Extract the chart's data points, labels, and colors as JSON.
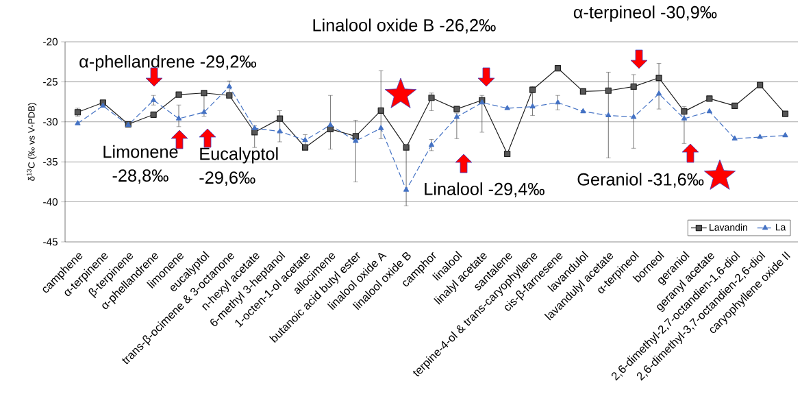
{
  "chart_data": {
    "type": "line",
    "ylabel": "δ$^{13}$C (‰ vs V-PDB)",
    "categories": [
      "camphene",
      "α-terpinene",
      "β-terpinene",
      "α-phellandrene",
      "limonene",
      "eucalyptol",
      "trans-β-ocimene & 3-octanone",
      "n-hexyl acetate",
      "6-methyl 3-heptanol",
      "1-octen-1-ol acetate",
      "allocimene",
      "butanoic acid butyl ester",
      "linalool oxide A",
      "linalool oxide B",
      "camphor",
      "linalool",
      "linalyl acetate",
      "santalene",
      "terpine-4-ol & trans-caryophyllene",
      "cis-β-farnesene",
      "lavandulol",
      "lavandulyl acetate",
      "α-terpineol",
      "borneol",
      "geraniol",
      "geranyl acetate",
      "2,6-dimethyl-2,7-octandien-1,6-diol",
      "2,6-dimethyl-3,7-octandien-2,6-diol",
      "caryophyllene oxide II"
    ],
    "series": [
      {
        "name": "Lavandin",
        "color": "#1f1f1f",
        "marker": "square",
        "line_style": "solid",
        "values": [
          -28.8,
          -27.6,
          -30.3,
          -29.1,
          -26.6,
          -26.4,
          -26.7,
          -31.3,
          -29.6,
          -33.2,
          -30.9,
          -31.8,
          -28.6,
          -33.2,
          -27.0,
          -28.4,
          -27.3,
          -34.0,
          -26.0,
          -23.3,
          -26.2,
          -26.1,
          -25.6,
          -24.5,
          -28.7,
          -27.1,
          -28.0,
          -25.4,
          -29.0
        ],
        "errors": [
          0.5,
          null,
          null,
          null,
          null,
          null,
          null,
          [
            -33.2,
            -30.5
          ],
          [
            -32.5,
            -28.6
          ],
          null,
          null,
          [
            -37.5,
            -29.8
          ],
          [
            -32.1,
            -23.6
          ],
          null,
          [
            -28.6,
            -26.4
          ],
          null,
          null,
          null,
          null,
          null,
          0.3,
          null,
          null,
          [
            -28.4,
            -22.7
          ],
          null,
          null,
          null,
          null,
          null
        ]
      },
      {
        "name": "La",
        "color": "#4472c4",
        "marker": "triangle",
        "line_style": "dashed",
        "values": [
          -30.2,
          -28.0,
          -30.4,
          -27.3,
          -29.6,
          -28.8,
          -25.6,
          -30.8,
          -31.2,
          -32.3,
          -30.4,
          -32.4,
          -30.8,
          -38.5,
          -32.9,
          -29.4,
          -27.6,
          -28.3,
          -28.1,
          -27.6,
          -28.7,
          -29.2,
          -29.4,
          -26.5,
          -29.6,
          -28.7,
          -32.1,
          -31.9,
          -31.7
        ],
        "errors": [
          null,
          null,
          null,
          0.6,
          [
            -30.6,
            -27.9
          ],
          [
            -29.3,
            -26.5
          ],
          0.7,
          null,
          null,
          0.7,
          [
            -33.4,
            -26.7
          ],
          null,
          null,
          [
            -40.5,
            -33.2
          ],
          0.7,
          [
            -32.1,
            -28.9
          ],
          [
            -31.3,
            -26.7
          ],
          null,
          [
            -29.2,
            -25.6
          ],
          0.9,
          null,
          [
            -34.5,
            -23.8
          ],
          [
            -33.3,
            -24.1
          ],
          null,
          [
            -32.7,
            -28.1
          ],
          null,
          null,
          null,
          null
        ]
      }
    ],
    "ylim": [
      -45,
      -20
    ],
    "yticks": [
      -45,
      -40,
      -35,
      -30,
      -25,
      -20
    ],
    "grid": "y",
    "legend": "bottom right",
    "annotations": [
      "Linalool oxide B -26,2‰",
      "α-terpineol  -30,9‰",
      "α-phellandrene -29,2‰",
      "Limonene -28,8‰",
      "Eucalyptol -29,6‰",
      "Linalool -29,4‰",
      "Geraniol -31,6‰"
    ]
  }
}
